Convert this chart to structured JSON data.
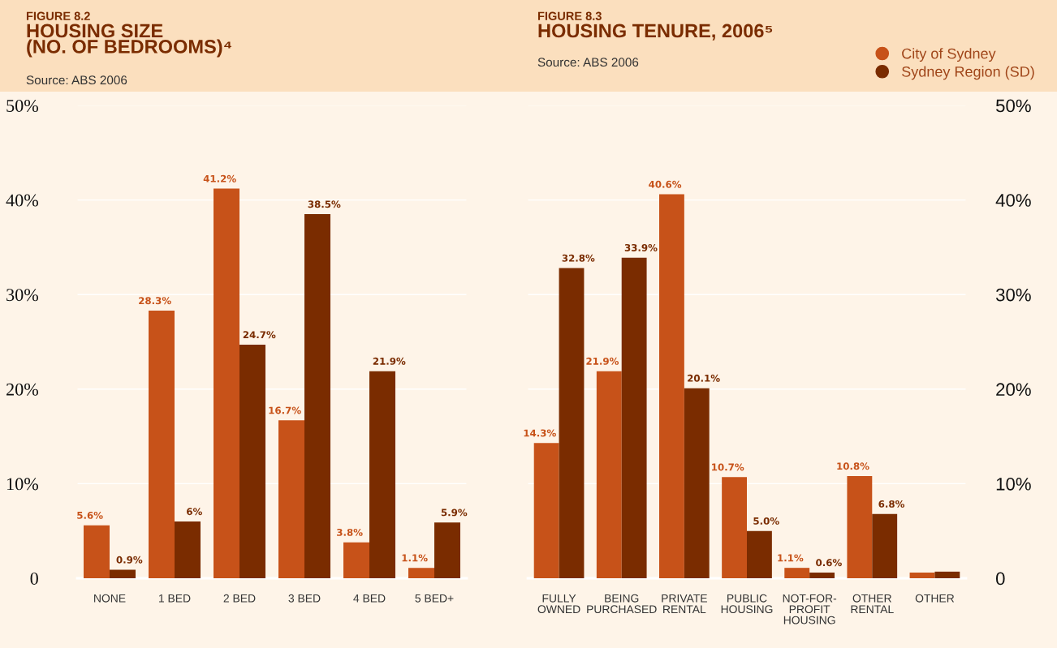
{
  "chart_data": [
    {
      "type": "bar",
      "title": "HOUSING SIZE\n(NO. OF BEDROOMS)⁴",
      "annotations": [
        "FIGURE 8.2",
        "Source: ABS 2006"
      ],
      "categories": [
        "NONE",
        "1 BED",
        "2 BED",
        "3 BED",
        "4 BED",
        "5 BED+"
      ],
      "series": [
        {
          "color": "#c75219",
          "values": [
            5.6,
            28.3,
            41.2,
            16.7,
            3.8,
            1.1
          ],
          "value_labels": [
            "5.6%",
            "28.3%",
            "41.2%",
            "16.7%",
            "3.8%",
            "1.1%"
          ]
        },
        {
          "color": "#7a2c00",
          "values": [
            0.9,
            6,
            24.7,
            38.5,
            21.9,
            5.9
          ],
          "value_labels": [
            "0.9%",
            "6%",
            "24.7%",
            "38.5%",
            "21.9%",
            "5.9%"
          ]
        }
      ],
      "ylim": [
        0,
        50
      ],
      "yticks": [
        {
          "value": 0,
          "label": "0"
        },
        {
          "value": 10,
          "label": "10%"
        },
        {
          "value": 20,
          "label": "20%"
        },
        {
          "value": 30,
          "label": "30%"
        },
        {
          "value": 40,
          "label": "40%"
        },
        {
          "value": 50,
          "label": "50%"
        }
      ],
      "grid": "y"
    },
    {
      "type": "bar",
      "title": "HOUSING TENURE, 2006⁵",
      "annotations": [
        "FIGURE 8.3",
        "Source: ABS 2006"
      ],
      "categories": [
        "FULLY\nOWNED",
        "BEING\nPURCHASED",
        "PRIVATE\nRENTAL",
        "PUBLIC\nHOUSING",
        "NOT-FOR-\nPROFIT\nHOUSING",
        "OTHER\nRENTAL",
        "OTHER"
      ],
      "series": [
        {
          "name": "City of Sydney",
          "color": "#c75219",
          "values": [
            14.3,
            21.9,
            40.6,
            10.7,
            1.1,
            10.8,
            0.6
          ],
          "value_labels": [
            "14.3%",
            "21.9%",
            "40.6%",
            "10.7%",
            "1.1%",
            "10.8%",
            null
          ]
        },
        {
          "name": "Sydney Region (SD)",
          "color": "#7a2c00",
          "values": [
            32.8,
            33.9,
            20.1,
            5.0,
            0.6,
            6.8,
            0.7
          ],
          "value_labels": [
            "32.8%",
            "33.9%",
            "20.1%",
            "5.0%",
            "0.6%",
            "6.8%",
            null
          ]
        }
      ],
      "ylim": [
        0,
        50
      ],
      "yticks": [
        {
          "value": 0,
          "label": "0"
        },
        {
          "value": 10,
          "label": "10%"
        },
        {
          "value": 20,
          "label": "20%"
        },
        {
          "value": 30,
          "label": "30%"
        },
        {
          "value": 40,
          "label": "40%"
        },
        {
          "value": 50,
          "label": "50%"
        }
      ],
      "grid": "y",
      "legend": "top right"
    }
  ]
}
